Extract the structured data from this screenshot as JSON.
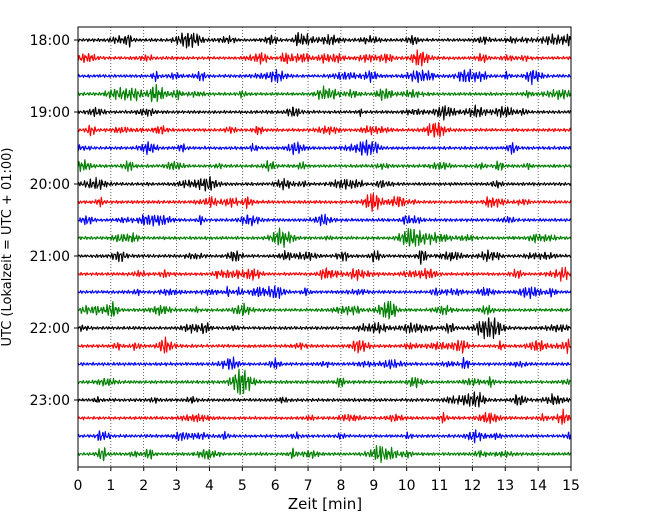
{
  "chart_data": {
    "type": "line",
    "subtype": "helicorder",
    "title": "",
    "xlabel": "Zeit  [min]",
    "ylabel": "UTC (Lokalzeit = UTC + 01:00)",
    "xlim": [
      0,
      15
    ],
    "x_ticks": [
      "0",
      "1",
      "2",
      "3",
      "4",
      "5",
      "6",
      "7",
      "8",
      "9",
      "10",
      "11",
      "12",
      "13",
      "14",
      "15"
    ],
    "y_tick_labels": [
      "18:00",
      "19:00",
      "20:00",
      "21:00",
      "22:00",
      "23:00"
    ],
    "minutes_per_line": 15,
    "grid": "vertical dotted lines at each minute",
    "trace_colors": [
      "#000000",
      "#ff0000",
      "#0000ff",
      "#008000"
    ],
    "traces": [
      {
        "start": "18:00",
        "color": "#000000"
      },
      {
        "start": "18:15",
        "color": "#ff0000"
      },
      {
        "start": "18:30",
        "color": "#0000ff"
      },
      {
        "start": "18:45",
        "color": "#008000"
      },
      {
        "start": "19:00",
        "color": "#000000"
      },
      {
        "start": "19:15",
        "color": "#ff0000"
      },
      {
        "start": "19:30",
        "color": "#0000ff"
      },
      {
        "start": "19:45",
        "color": "#008000"
      },
      {
        "start": "20:00",
        "color": "#000000"
      },
      {
        "start": "20:15",
        "color": "#ff0000"
      },
      {
        "start": "20:30",
        "color": "#0000ff"
      },
      {
        "start": "20:45",
        "color": "#008000"
      },
      {
        "start": "21:00",
        "color": "#000000"
      },
      {
        "start": "21:15",
        "color": "#ff0000"
      },
      {
        "start": "21:30",
        "color": "#0000ff"
      },
      {
        "start": "21:45",
        "color": "#008000"
      },
      {
        "start": "22:00",
        "color": "#000000"
      },
      {
        "start": "22:15",
        "color": "#ff0000"
      },
      {
        "start": "22:30",
        "color": "#0000ff"
      },
      {
        "start": "22:45",
        "color": "#008000"
      },
      {
        "start": "23:00",
        "color": "#000000"
      },
      {
        "start": "23:15",
        "color": "#ff0000"
      },
      {
        "start": "23:30",
        "color": "#0000ff"
      },
      {
        "start": "23:45",
        "color": "#008000"
      }
    ]
  }
}
